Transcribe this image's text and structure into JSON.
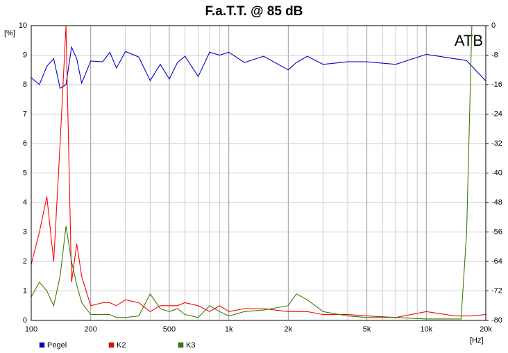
{
  "chart_data": {
    "type": "line",
    "title": "F.a.T.T. @ 85 dB",
    "ylabel": "[%]",
    "xlabel": "[Hz]",
    "annotation": "ATB",
    "xscale": "log",
    "grid": true,
    "legend": "bottom-left",
    "xlim": [
      100,
      20000
    ],
    "xticks": [
      100,
      200,
      500,
      {
        "value": 1000,
        "label": "1k"
      },
      {
        "value": 2000,
        "label": "2k"
      },
      {
        "value": 5000,
        "label": "5k"
      },
      {
        "value": 10000,
        "label": "10k"
      },
      {
        "value": 20000,
        "label": "20k"
      }
    ],
    "xminor_ticks": [
      300,
      400,
      600,
      700,
      800,
      900,
      3000,
      4000,
      6000,
      7000,
      8000,
      9000
    ],
    "ylim": [
      0,
      10
    ],
    "yticks": [
      0,
      1,
      2,
      3,
      4,
      5,
      6,
      7,
      8,
      9,
      10
    ],
    "y2lim": [
      -80,
      0
    ],
    "y2ticks": [
      -80,
      -72,
      -64,
      -56,
      -48,
      -40,
      -32,
      -24,
      -16,
      -8,
      0
    ],
    "x": [
      100,
      110,
      120,
      130,
      140,
      150,
      160,
      170,
      180,
      200,
      230,
      250,
      270,
      300,
      350,
      400,
      450,
      500,
      550,
      600,
      700,
      800,
      900,
      1000,
      1200,
      1500,
      2000,
      2200,
      2500,
      3000,
      4000,
      5000,
      7000,
      10000,
      14000,
      15000,
      16000,
      17000,
      20000
    ],
    "series": [
      {
        "name": "Pegel",
        "color": "#0000cc",
        "axis": "y2",
        "values": [
          -14.1,
          -16,
          -11,
          -9,
          -17,
          -16,
          -5.8,
          -9,
          -15.6,
          -9.6,
          -9.8,
          -7.2,
          -11.5,
          -7,
          -8.5,
          -14.9,
          -10.5,
          -14.5,
          -10,
          -8.3,
          -13.8,
          -7.2,
          -8,
          -7.2,
          -10,
          -8.3,
          -12,
          -10,
          -8.3,
          -10.5,
          -9.8,
          -9.8,
          -10.5,
          -7.8,
          -9,
          -9.2,
          -9.5,
          -11,
          -15
        ]
      },
      {
        "name": "K2",
        "color": "#ff0000",
        "values": [
          1.9,
          3.0,
          4.2,
          2.0,
          6,
          10,
          1.3,
          2.6,
          1.5,
          0.5,
          0.6,
          0.6,
          0.5,
          0.7,
          0.6,
          0.3,
          0.5,
          0.5,
          0.5,
          0.6,
          0.5,
          0.3,
          0.5,
          0.3,
          0.4,
          0.4,
          0.3,
          0.3,
          0.3,
          0.2,
          0.2,
          0.15,
          0.1,
          0.3,
          0.15,
          0.15,
          0.15,
          0.15,
          0.2
        ]
      },
      {
        "name": "K3",
        "color": "#3a7a00",
        "values": [
          0.8,
          1.3,
          1.0,
          0.5,
          1.5,
          3.2,
          2.0,
          1.2,
          0.6,
          0.2,
          0.2,
          0.2,
          0.1,
          0.1,
          0.15,
          0.9,
          0.4,
          0.3,
          0.4,
          0.2,
          0.1,
          0.5,
          0.3,
          0.15,
          0.3,
          0.35,
          0.5,
          0.9,
          0.7,
          0.3,
          0.15,
          0.1,
          0.1,
          0.05,
          0.05,
          0.05,
          3,
          10,
          10
        ]
      }
    ]
  }
}
